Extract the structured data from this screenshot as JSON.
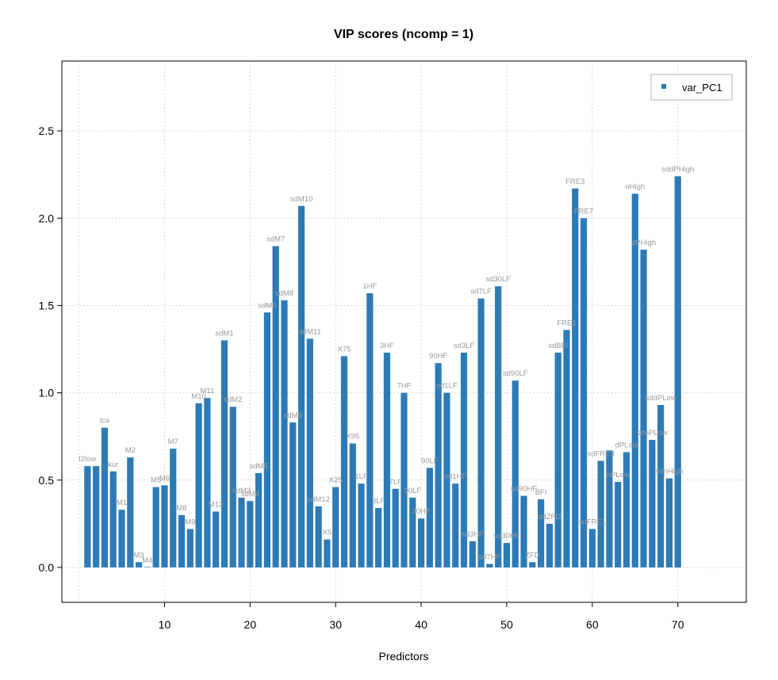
{
  "chart_data": {
    "type": "bar",
    "title": "VIP scores (ncomp = 1)",
    "xlabel": "Predictors",
    "ylabel": "",
    "xlim": [
      -2,
      78
    ],
    "ylim": [
      -0.2,
      2.9
    ],
    "x_ticks": [
      10,
      20,
      30,
      40,
      50,
      60,
      70
    ],
    "y_ticks": [
      0.0,
      0.5,
      1.0,
      1.5,
      2.0,
      2.5
    ],
    "y_tick_labels": [
      "0.0",
      "0.5",
      "1.0",
      "1.5",
      "2.0",
      "2.5"
    ],
    "grid": true,
    "legend": {
      "position": "top-right",
      "entries": [
        "var_PC1"
      ]
    },
    "bar_color": "#2c7bb6",
    "label_color": "#9a9a9a",
    "series": [
      {
        "name": "var_PC1",
        "x": [
          1,
          2,
          3,
          4,
          5,
          6,
          7,
          8,
          9,
          10,
          11,
          12,
          13,
          14,
          15,
          16,
          17,
          18,
          19,
          20,
          21,
          22,
          23,
          24,
          25,
          26,
          27,
          28,
          29,
          30,
          31,
          32,
          33,
          34,
          35,
          36,
          37,
          38,
          39,
          40,
          41,
          42,
          43,
          44,
          45,
          46,
          47,
          48,
          49,
          50,
          51,
          52,
          53,
          54,
          55,
          56,
          57,
          58,
          59,
          60,
          61,
          62,
          63,
          64,
          65,
          66,
          67,
          68,
          69,
          70
        ],
        "values": [
          0.58,
          0.58,
          0.8,
          0.55,
          0.33,
          0.63,
          0.03,
          0.0,
          0.46,
          0.47,
          0.68,
          0.3,
          0.22,
          0.94,
          0.97,
          0.32,
          1.3,
          0.92,
          0.4,
          0.38,
          0.54,
          1.46,
          1.84,
          1.53,
          0.83,
          2.07,
          1.31,
          0.35,
          0.16,
          0.46,
          1.21,
          0.71,
          0.48,
          1.57,
          0.34,
          1.23,
          0.45,
          1.0,
          0.4,
          0.28,
          0.57,
          1.17,
          1.0,
          0.48,
          1.23,
          0.15,
          1.54,
          0.02,
          1.61,
          0.14,
          1.07,
          0.41,
          0.03,
          0.39,
          0.25,
          1.23,
          1.36,
          2.17,
          2.0,
          0.22,
          0.61,
          0.67,
          0.49,
          0.66,
          2.14,
          1.82,
          0.73,
          0.93,
          0.51,
          2.24
        ],
        "labels": [
          "l2low",
          "",
          "lca",
          "kur",
          "M1",
          "M2",
          "M3",
          "M4",
          "M5",
          "M6",
          "M7",
          "M8",
          "M9",
          "M10",
          "M11",
          "M12",
          "sdM1",
          "sdM2",
          "sdM3",
          "sdM4",
          "sdM5",
          "sdM6",
          "sdM7",
          "sdM8",
          "sdM9",
          "sdM10",
          "sdM11",
          "sdM12",
          "X5",
          "X25",
          "X75",
          "X95",
          "1LF",
          "1HF",
          "3LF",
          "3HF",
          "7LF",
          "7HF",
          "90LF",
          "30HF",
          "90LF",
          "90HF",
          "sd1LF",
          "sd1HF",
          "sd3LF",
          "sd3HF",
          "sd7LF",
          "sd7HF",
          "sd30LF",
          "sd30HF",
          "sd90LF",
          "sd90HF",
          "ZFD",
          "BFI",
          "sdZFD",
          "sdBFI",
          "FRE1",
          "FRE3",
          "FRE7",
          "sdFRE1",
          "sdFRE3",
          "",
          "nPLow",
          "dPLow",
          "nHigh",
          "dPHigh",
          "sdnPLow",
          "sddPLow",
          "sdnHigh",
          "sddPHigh"
        ]
      }
    ]
  }
}
